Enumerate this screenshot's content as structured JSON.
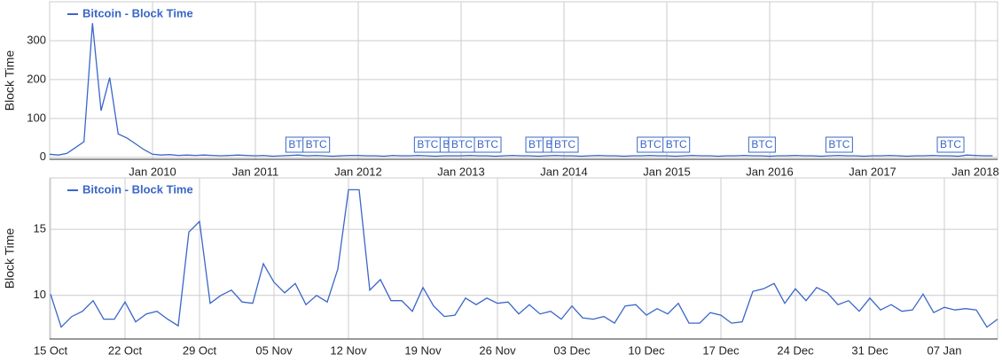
{
  "chart_data": [
    {
      "type": "line",
      "y_label": "Block Time",
      "categories": [
        null,
        null,
        null,
        null,
        null,
        null,
        null,
        null,
        null,
        null,
        null,
        null,
        "Jan 2010",
        null,
        null,
        null,
        null,
        null,
        null,
        null,
        null,
        null,
        null,
        null,
        "Jan 2011",
        null,
        null,
        null,
        null,
        null,
        null,
        null,
        null,
        null,
        null,
        null,
        "Jan 2012",
        null,
        null,
        null,
        null,
        null,
        null,
        null,
        null,
        null,
        null,
        null,
        "Jan 2013",
        null,
        null,
        null,
        null,
        null,
        null,
        null,
        null,
        null,
        null,
        null,
        "Jan 2014",
        null,
        null,
        null,
        null,
        null,
        null,
        null,
        null,
        null,
        null,
        null,
        "Jan 2015",
        null,
        null,
        null,
        null,
        null,
        null,
        null,
        null,
        null,
        null,
        null,
        "Jan 2016",
        null,
        null,
        null,
        null,
        null,
        null,
        null,
        null,
        null,
        null,
        null,
        "Jan 2017",
        null,
        null,
        null,
        null,
        null,
        null,
        null,
        null,
        null,
        null,
        null,
        "Jan 2018",
        null,
        null
      ],
      "series": [
        {
          "name": "Bitcoin - Block Time",
          "color": "#3a66c8",
          "values": [
            8,
            6,
            10,
            25,
            40,
            345,
            120,
            205,
            60,
            50,
            35,
            20,
            8,
            6,
            7,
            5,
            6,
            5,
            6,
            5,
            4,
            5,
            6,
            5,
            4,
            5,
            3,
            4,
            5,
            6,
            4,
            5,
            4,
            3,
            4,
            5,
            5,
            4,
            4,
            3,
            5,
            4,
            4,
            5,
            4,
            3,
            4,
            4,
            4,
            5,
            4,
            4,
            3,
            4,
            5,
            4,
            4,
            3,
            4,
            5,
            4,
            4,
            3,
            4,
            5,
            4,
            4,
            3,
            4,
            4,
            5,
            4,
            4,
            3,
            4,
            5,
            4,
            4,
            3,
            4,
            4,
            5,
            4,
            4,
            3,
            4,
            4,
            5,
            4,
            4,
            3,
            4,
            5,
            4,
            4,
            3,
            4,
            4,
            5,
            4,
            3,
            4,
            4,
            5,
            4,
            4,
            3,
            6,
            5,
            4,
            4
          ]
        }
      ],
      "annotations": [
        {
          "label": "BTC",
          "index": 29
        },
        {
          "label": "BTC",
          "index": 31
        },
        {
          "label": "BTC",
          "index": 44
        },
        {
          "label": "BTC",
          "index": 47
        },
        {
          "label": "BTC",
          "index": 48
        },
        {
          "label": "BTC",
          "index": 51
        },
        {
          "label": "BTC",
          "index": 57
        },
        {
          "label": "BTC",
          "index": 59
        },
        {
          "label": "BTC",
          "index": 60
        },
        {
          "label": "BTC",
          "index": 70
        },
        {
          "label": "BTC",
          "index": 73
        },
        {
          "label": "BTC",
          "index": 83
        },
        {
          "label": "BTC",
          "index": 92
        },
        {
          "label": "BTC",
          "index": 105
        }
      ],
      "ylim": [
        -5,
        400
      ],
      "yticks": [
        0,
        100,
        200,
        300
      ],
      "grid": true
    },
    {
      "type": "line",
      "y_label": "Block Time",
      "categories": [
        "15 Oct",
        null,
        null,
        null,
        null,
        null,
        null,
        "22 Oct",
        null,
        null,
        null,
        null,
        null,
        null,
        "29 Oct",
        null,
        null,
        null,
        null,
        null,
        null,
        "05 Nov",
        null,
        null,
        null,
        null,
        null,
        null,
        "12 Nov",
        null,
        null,
        null,
        null,
        null,
        null,
        "19 Nov",
        null,
        null,
        null,
        null,
        null,
        null,
        "26 Nov",
        null,
        null,
        null,
        null,
        null,
        null,
        "03 Dec",
        null,
        null,
        null,
        null,
        null,
        null,
        "10 Dec",
        null,
        null,
        null,
        null,
        null,
        null,
        "17 Dec",
        null,
        null,
        null,
        null,
        null,
        null,
        "24 Dec",
        null,
        null,
        null,
        null,
        null,
        null,
        "31 Dec",
        null,
        null,
        null,
        null,
        null,
        null,
        "07 Jan",
        null,
        null,
        null,
        null,
        null
      ],
      "series": [
        {
          "name": "Bitcoin - Block Time",
          "color": "#3a66c8",
          "values": [
            10.1,
            7.6,
            8.4,
            8.8,
            9.6,
            8.2,
            8.2,
            9.5,
            8.0,
            8.6,
            8.8,
            8.2,
            7.7,
            14.8,
            15.6,
            9.4,
            10.0,
            10.4,
            9.5,
            9.4,
            12.4,
            11.0,
            10.2,
            10.9,
            9.3,
            10.0,
            9.5,
            12.0,
            18.0,
            18.0,
            10.4,
            11.2,
            9.6,
            9.6,
            8.8,
            10.6,
            9.2,
            8.4,
            8.5,
            9.8,
            9.3,
            9.8,
            9.4,
            9.5,
            8.6,
            9.3,
            8.6,
            8.8,
            8.2,
            9.2,
            8.3,
            8.2,
            8.4,
            7.9,
            9.2,
            9.3,
            8.5,
            9.0,
            8.6,
            9.4,
            7.9,
            7.9,
            8.7,
            8.5,
            7.9,
            8.0,
            10.3,
            10.5,
            10.9,
            9.4,
            10.5,
            9.6,
            10.6,
            10.2,
            9.3,
            9.6,
            8.8,
            9.8,
            8.9,
            9.3,
            8.8,
            8.9,
            10.1,
            8.7,
            9.1,
            8.9,
            9.0,
            8.9,
            7.6,
            8.2
          ]
        }
      ],
      "ylim": [
        6.7,
        18.9
      ],
      "yticks": [
        10,
        15
      ],
      "grid": true
    }
  ]
}
